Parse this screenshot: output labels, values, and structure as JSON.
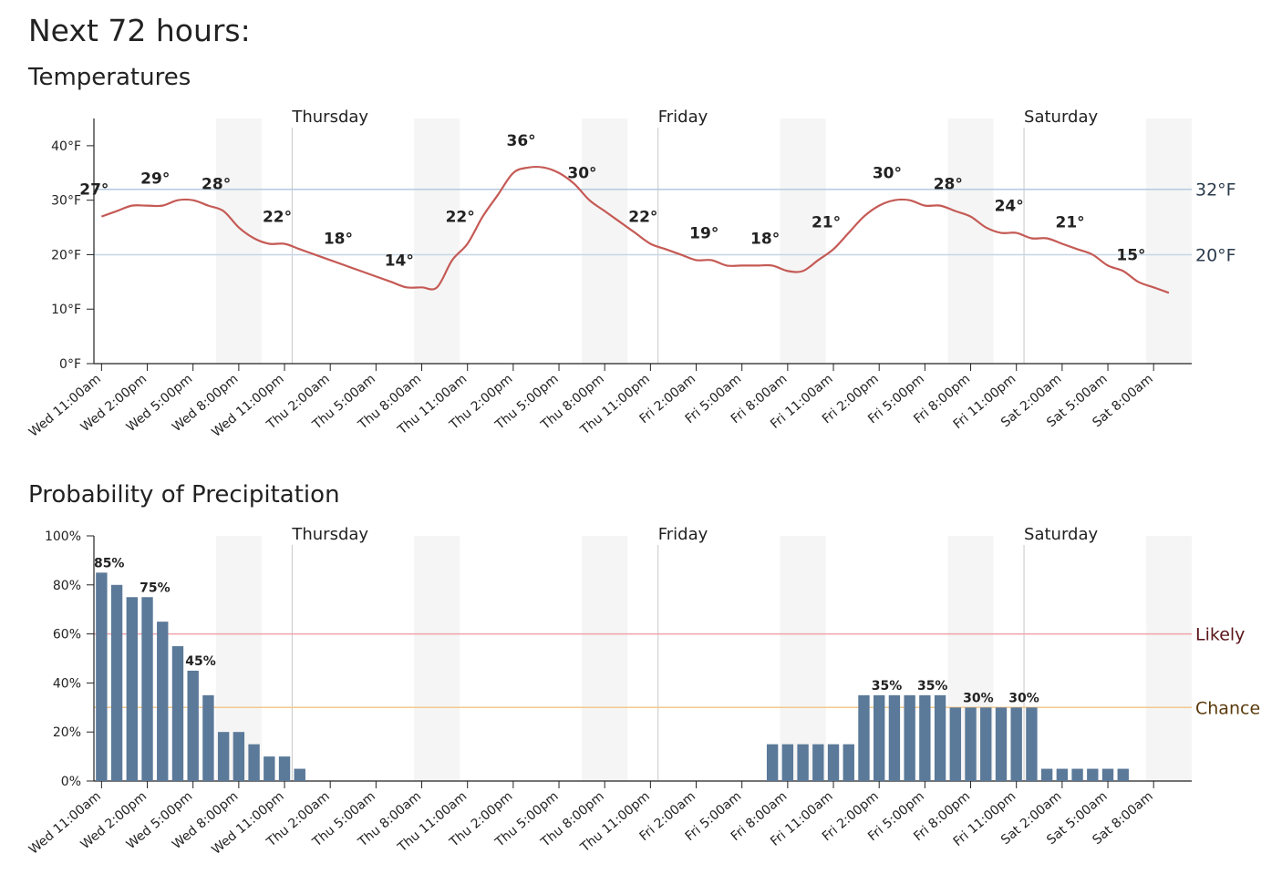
{
  "heading": "Next 72 hours:",
  "chart_data": [
    {
      "type": "line",
      "title": "Temperatures",
      "color": "#c55a55",
      "categories": [
        "Wed 11:00am",
        null,
        null,
        "Wed 2:00pm",
        null,
        null,
        "Wed 5:00pm",
        null,
        null,
        "Wed 8:00pm",
        null,
        null,
        "Wed 11:00pm",
        null,
        null,
        "Thu 2:00am",
        null,
        null,
        "Thu 5:00am",
        null,
        null,
        "Thu 8:00am",
        null,
        null,
        "Thu 11:00am",
        null,
        null,
        "Thu 2:00pm",
        null,
        null,
        "Thu 5:00pm",
        null,
        null,
        "Thu 8:00pm",
        null,
        null,
        "Thu 11:00pm",
        null,
        null,
        "Fri 2:00am",
        null,
        null,
        "Fri 5:00am",
        null,
        null,
        "Fri 8:00am",
        null,
        null,
        "Fri 11:00am",
        null,
        null,
        "Fri 2:00pm",
        null,
        null,
        "Fri 5:00pm",
        null,
        null,
        "Fri 8:00pm",
        null,
        null,
        "Fri 11:00pm",
        null,
        null,
        "Sat 2:00am",
        null,
        null,
        "Sat 5:00am",
        null,
        null,
        "Sat 8:00am",
        null,
        null
      ],
      "values": [
        27,
        28,
        29,
        29,
        29,
        30,
        30,
        29,
        28,
        25,
        23,
        22,
        22,
        21,
        20,
        19,
        18,
        17,
        16,
        15,
        14,
        14,
        14,
        19,
        22,
        27,
        31,
        35,
        36,
        36,
        35,
        33,
        30,
        28,
        26,
        24,
        22,
        21,
        20,
        19,
        19,
        18,
        18,
        18,
        18,
        17,
        17,
        19,
        21,
        24,
        27,
        29,
        30,
        30,
        29,
        29,
        28,
        27,
        25,
        24,
        24,
        23,
        23,
        22,
        21,
        20,
        18,
        17,
        15,
        14,
        13,
        null
      ],
      "value_labels": [
        "27°",
        null,
        null,
        null,
        "29°",
        null,
        null,
        null,
        "28°",
        null,
        null,
        null,
        "22°",
        null,
        null,
        null,
        "18°",
        null,
        null,
        null,
        "14°",
        null,
        null,
        null,
        "22°",
        null,
        null,
        null,
        "36°",
        null,
        null,
        null,
        "30°",
        null,
        null,
        null,
        "22°",
        null,
        null,
        null,
        "19°",
        null,
        null,
        null,
        "18°",
        null,
        null,
        null,
        "21°",
        null,
        null,
        null,
        "30°",
        null,
        null,
        null,
        "28°",
        null,
        null,
        null,
        "24°",
        null,
        null,
        null,
        "21°",
        null,
        null,
        null,
        "15°",
        null,
        null,
        null
      ],
      "ylim": [
        0,
        45
      ],
      "yticks": [
        {
          "value": 0,
          "label": "0°F"
        },
        {
          "value": 10,
          "label": "10°F"
        },
        {
          "value": 20,
          "label": "20°F"
        },
        {
          "value": 30,
          "label": "30°F"
        },
        {
          "value": 40,
          "label": "40°F"
        }
      ],
      "reference_lines": [
        {
          "value": 32,
          "label": "32°F",
          "color": "#b3cadf",
          "label_color": "#2b3b4c"
        },
        {
          "value": 20,
          "label": "20°F",
          "color": "#c4d6e6",
          "label_color": "#2b3b4c"
        }
      ],
      "day_markers": [
        {
          "label": "Thursday",
          "index": 13
        },
        {
          "label": "Friday",
          "index": 37
        },
        {
          "label": "Saturday",
          "index": 61
        }
      ]
    },
    {
      "type": "bar",
      "title": "Probability of Precipitation",
      "color": "#5b7999",
      "categories": [
        "Wed 11:00am",
        null,
        null,
        "Wed 2:00pm",
        null,
        null,
        "Wed 5:00pm",
        null,
        null,
        "Wed 8:00pm",
        null,
        null,
        "Wed 11:00pm",
        null,
        null,
        "Thu 2:00am",
        null,
        null,
        "Thu 5:00am",
        null,
        null,
        "Thu 8:00am",
        null,
        null,
        "Thu 11:00am",
        null,
        null,
        "Thu 2:00pm",
        null,
        null,
        "Thu 5:00pm",
        null,
        null,
        "Thu 8:00pm",
        null,
        null,
        "Thu 11:00pm",
        null,
        null,
        "Fri 2:00am",
        null,
        null,
        "Fri 5:00am",
        null,
        null,
        "Fri 8:00am",
        null,
        null,
        "Fri 11:00am",
        null,
        null,
        "Fri 2:00pm",
        null,
        null,
        "Fri 5:00pm",
        null,
        null,
        "Fri 8:00pm",
        null,
        null,
        "Fri 11:00pm",
        null,
        null,
        "Sat 2:00am",
        null,
        null,
        "Sat 5:00am",
        null,
        null,
        "Sat 8:00am",
        null,
        null
      ],
      "values": [
        85,
        80,
        75,
        75,
        65,
        55,
        45,
        35,
        20,
        20,
        15,
        10,
        10,
        5,
        0,
        0,
        0,
        0,
        0,
        0,
        0,
        0,
        0,
        0,
        0,
        0,
        0,
        0,
        0,
        0,
        0,
        0,
        0,
        0,
        0,
        0,
        0,
        0,
        0,
        0,
        0,
        0,
        0,
        0,
        15,
        15,
        15,
        15,
        15,
        15,
        35,
        35,
        35,
        35,
        35,
        35,
        30,
        30,
        30,
        30,
        30,
        30,
        5,
        5,
        5,
        5,
        5,
        5,
        0,
        0,
        0,
        0
      ],
      "value_labels": [
        "85%",
        null,
        null,
        "75%",
        null,
        null,
        "45%",
        null,
        null,
        null,
        null,
        null,
        null,
        null,
        null,
        null,
        null,
        null,
        null,
        null,
        null,
        null,
        null,
        null,
        null,
        null,
        null,
        null,
        null,
        null,
        null,
        null,
        null,
        null,
        null,
        null,
        null,
        null,
        null,
        null,
        null,
        null,
        null,
        null,
        null,
        null,
        null,
        null,
        null,
        null,
        null,
        "35%",
        null,
        null,
        "35%",
        null,
        null,
        "30%",
        null,
        null,
        "30%",
        null,
        null,
        null,
        null,
        null,
        null,
        null,
        null,
        null,
        null,
        null
      ],
      "ylim": [
        0,
        100
      ],
      "yticks": [
        {
          "value": 0,
          "label": "0%"
        },
        {
          "value": 20,
          "label": "20%"
        },
        {
          "value": 40,
          "label": "40%"
        },
        {
          "value": 60,
          "label": "60%"
        },
        {
          "value": 80,
          "label": "80%"
        },
        {
          "value": 100,
          "label": "100%"
        }
      ],
      "reference_lines": [
        {
          "value": 60,
          "label": "Likely",
          "color": "#f2a3ab",
          "label_color": "#5a1518"
        },
        {
          "value": 30,
          "label": "Chance",
          "color": "#f5c98c",
          "label_color": "#5a3a0c"
        }
      ],
      "day_markers": [
        {
          "label": "Thursday",
          "index": 13
        },
        {
          "label": "Friday",
          "index": 37
        },
        {
          "label": "Saturday",
          "index": 61
        }
      ]
    }
  ]
}
